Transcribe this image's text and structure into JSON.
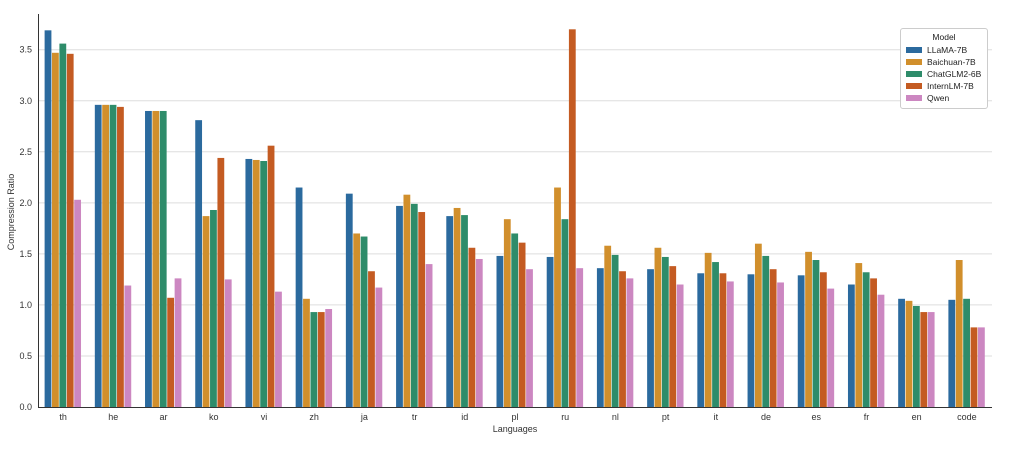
{
  "chart_data": {
    "type": "bar",
    "title": "",
    "xlabel": "Languages",
    "ylabel": "Compression Ratio",
    "ylim": [
      0,
      3.85
    ],
    "yticks": [
      "0.0",
      "0.5",
      "1.0",
      "1.5",
      "2.0",
      "2.5",
      "3.0",
      "3.5"
    ],
    "grid": "horizontal",
    "legend_position": "top-right",
    "legend_title": "Model",
    "categories": [
      "th",
      "he",
      "ar",
      "ko",
      "vi",
      "zh",
      "ja",
      "tr",
      "id",
      "pl",
      "ru",
      "nl",
      "pt",
      "it",
      "de",
      "es",
      "fr",
      "en",
      "code"
    ],
    "series": [
      {
        "name": "LLaMA-7B",
        "color": "#2b6a9e",
        "values": [
          3.69,
          2.96,
          2.9,
          2.81,
          2.43,
          2.15,
          2.09,
          1.97,
          1.87,
          1.48,
          1.47,
          1.36,
          1.35,
          1.31,
          1.3,
          1.29,
          1.2,
          1.06,
          1.05
        ]
      },
      {
        "name": "Baichuan-7B",
        "color": "#d18f2c",
        "values": [
          3.47,
          2.96,
          2.9,
          1.87,
          2.42,
          1.06,
          1.7,
          2.08,
          1.95,
          1.84,
          2.15,
          1.58,
          1.56,
          1.51,
          1.6,
          1.52,
          1.41,
          1.04,
          1.44
        ]
      },
      {
        "name": "ChatGLM2-6B",
        "color": "#2e8c6a",
        "values": [
          3.56,
          2.96,
          2.9,
          1.93,
          2.41,
          0.93,
          1.67,
          1.99,
          1.88,
          1.7,
          1.84,
          1.49,
          1.47,
          1.42,
          1.48,
          1.44,
          1.32,
          0.99,
          1.06
        ]
      },
      {
        "name": "InternLM-7B",
        "color": "#c45b22",
        "values": [
          3.46,
          2.94,
          1.07,
          2.44,
          2.56,
          0.93,
          1.33,
          1.91,
          1.56,
          1.61,
          3.7,
          1.33,
          1.38,
          1.31,
          1.35,
          1.32,
          1.26,
          0.93,
          0.78
        ]
      },
      {
        "name": "Qwen",
        "color": "#cc87c1",
        "values": [
          2.03,
          1.19,
          1.26,
          1.25,
          1.13,
          0.96,
          1.17,
          1.4,
          1.45,
          1.35,
          1.36,
          1.26,
          1.2,
          1.23,
          1.22,
          1.16,
          1.1,
          0.93,
          0.78
        ]
      }
    ]
  }
}
